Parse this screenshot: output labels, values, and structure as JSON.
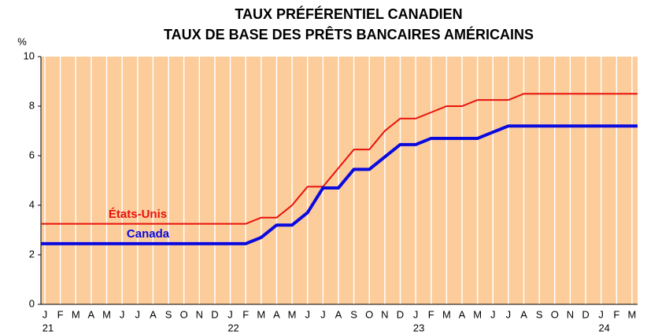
{
  "chart_data": {
    "type": "line",
    "title": [
      "TAUX PRÉFÉRENTIEL CANADIEN",
      "TAUX DE BASE DES PRÊTS BANCAIRES AMÉRICAINS"
    ],
    "ylabel": "%",
    "categories": [
      "J",
      "F",
      "M",
      "A",
      "M",
      "J",
      "J",
      "A",
      "S",
      "O",
      "N",
      "D",
      "J",
      "F",
      "M",
      "A",
      "M",
      "J",
      "J",
      "A",
      "S",
      "O",
      "N",
      "D",
      "J",
      "F",
      "M",
      "A",
      "M",
      "J",
      "J",
      "A",
      "S",
      "O",
      "N",
      "D",
      "J",
      "F",
      "M"
    ],
    "years": [
      "21",
      "22",
      "23",
      "24"
    ],
    "series": [
      {
        "name": "États-Unis",
        "color": "#e8120c",
        "width": 2,
        "values": [
          3.25,
          3.25,
          3.25,
          3.25,
          3.25,
          3.25,
          3.25,
          3.25,
          3.25,
          3.25,
          3.25,
          3.25,
          3.25,
          3.25,
          3.5,
          3.5,
          4.0,
          4.75,
          4.75,
          5.5,
          6.25,
          6.25,
          7.0,
          7.5,
          7.5,
          7.75,
          8.0,
          8.0,
          8.25,
          8.25,
          8.25,
          8.5,
          8.5,
          8.5,
          8.5,
          8.5,
          8.5,
          8.5,
          8.5
        ]
      },
      {
        "name": "Canada",
        "color": "#0a0adf",
        "width": 4,
        "values": [
          2.45,
          2.45,
          2.45,
          2.45,
          2.45,
          2.45,
          2.45,
          2.45,
          2.45,
          2.45,
          2.45,
          2.45,
          2.45,
          2.45,
          2.7,
          3.2,
          3.2,
          3.7,
          4.7,
          4.7,
          5.45,
          5.45,
          5.95,
          6.45,
          6.45,
          6.7,
          6.7,
          6.7,
          6.7,
          6.95,
          7.2,
          7.2,
          7.2,
          7.2,
          7.2,
          7.2,
          7.2,
          7.2,
          7.2
        ]
      }
    ],
    "ylim": [
      0,
      10
    ],
    "yticks": [
      0,
      2,
      4,
      6,
      8,
      10
    ],
    "background": "#fccc9a",
    "grid": true
  }
}
